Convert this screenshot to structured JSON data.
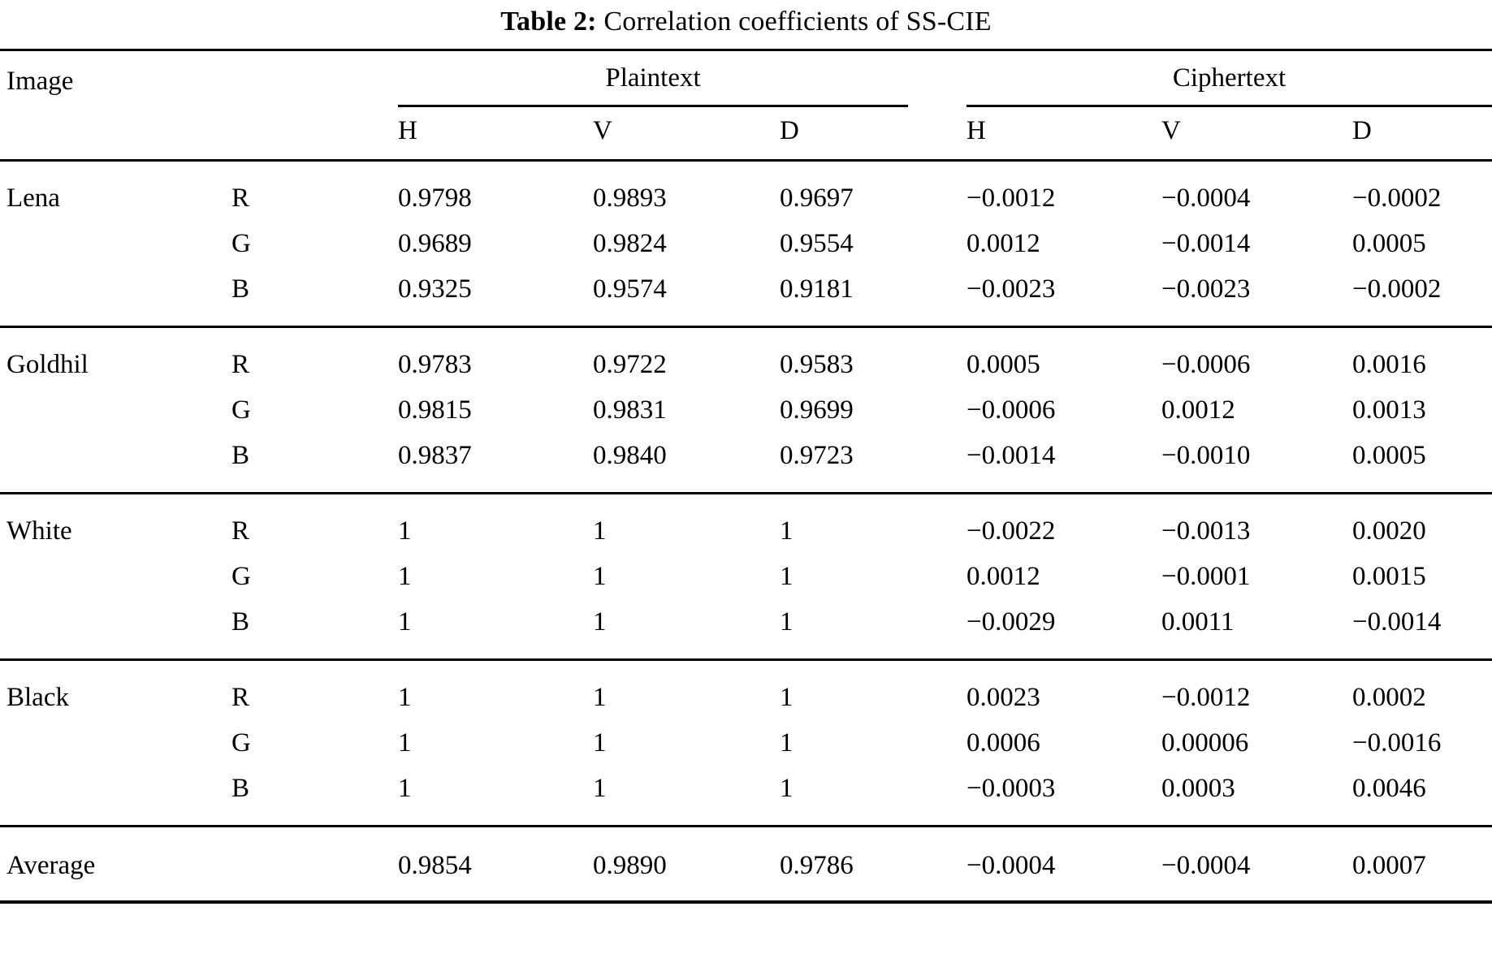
{
  "title": {
    "tag": "Table 2:",
    "text": "Correlation coefficients of SS-CIE"
  },
  "table": {
    "header": {
      "image": "Image",
      "plaintext": "Plaintext",
      "ciphertext": "Ciphertext",
      "subcols": [
        "H",
        "V",
        "D",
        "H",
        "V",
        "D"
      ]
    },
    "groups": [
      {
        "image": "Lena",
        "rows": [
          {
            "channel": "R",
            "values": [
              "0.9798",
              "0.9893",
              "0.9697",
              "−0.0012",
              "−0.0004",
              "−0.0002"
            ]
          },
          {
            "channel": "G",
            "values": [
              "0.9689",
              "0.9824",
              "0.9554",
              "0.0012",
              "−0.0014",
              "0.0005"
            ]
          },
          {
            "channel": "B",
            "values": [
              "0.9325",
              "0.9574",
              "0.9181",
              "−0.0023",
              "−0.0023",
              "−0.0002"
            ]
          }
        ]
      },
      {
        "image": "Goldhil",
        "rows": [
          {
            "channel": "R",
            "values": [
              "0.9783",
              "0.9722",
              "0.9583",
              "0.0005",
              "−0.0006",
              "0.0016"
            ]
          },
          {
            "channel": "G",
            "values": [
              "0.9815",
              "0.9831",
              "0.9699",
              "−0.0006",
              "0.0012",
              "0.0013"
            ]
          },
          {
            "channel": "B",
            "values": [
              "0.9837",
              "0.9840",
              "0.9723",
              "−0.0014",
              "−0.0010",
              "0.0005"
            ]
          }
        ]
      },
      {
        "image": "White",
        "rows": [
          {
            "channel": "R",
            "values": [
              "1",
              "1",
              "1",
              "−0.0022",
              "−0.0013",
              "0.0020"
            ]
          },
          {
            "channel": "G",
            "values": [
              "1",
              "1",
              "1",
              "0.0012",
              "−0.0001",
              "0.0015"
            ]
          },
          {
            "channel": "B",
            "values": [
              "1",
              "1",
              "1",
              "−0.0029",
              "0.0011",
              "−0.0014"
            ]
          }
        ]
      },
      {
        "image": "Black",
        "rows": [
          {
            "channel": "R",
            "values": [
              "1",
              "1",
              "1",
              "0.0023",
              "−0.0012",
              "0.0002"
            ]
          },
          {
            "channel": "G",
            "values": [
              "1",
              "1",
              "1",
              "0.0006",
              "0.00006",
              "−0.0016"
            ]
          },
          {
            "channel": "B",
            "values": [
              "1",
              "1",
              "1",
              "−0.0003",
              "0.0003",
              "0.0046"
            ]
          }
        ]
      }
    ],
    "average": {
      "label": "Average",
      "values": [
        "0.9854",
        "0.9890",
        "0.9786",
        "−0.0004",
        "−0.0004",
        "0.0007"
      ]
    }
  }
}
